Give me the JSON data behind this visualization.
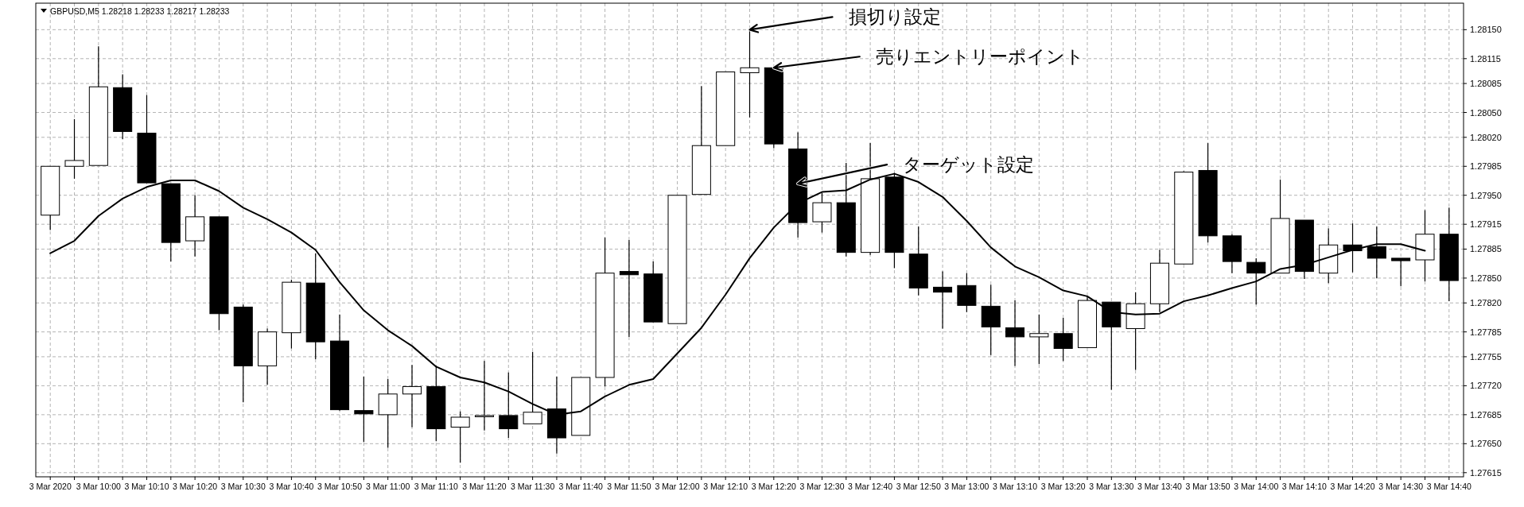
{
  "chart_data": {
    "type": "candlestick",
    "title": "GBPUSD,M5 1.28218 1.28233 1.28217 1.28233",
    "color": "#000000",
    "x": [
      "2020-03-03T09:50",
      "2020-03-03T09:55",
      "2020-03-03T10:00",
      "2020-03-03T10:05",
      "2020-03-03T10:10",
      "2020-03-03T10:15",
      "2020-03-03T10:20",
      "2020-03-03T10:25",
      "2020-03-03T10:30",
      "2020-03-03T10:35",
      "2020-03-03T10:40",
      "2020-03-03T10:45",
      "2020-03-03T10:50",
      "2020-03-03T10:55",
      "2020-03-03T11:00",
      "2020-03-03T11:05",
      "2020-03-03T11:10",
      "2020-03-03T11:15",
      "2020-03-03T11:20",
      "2020-03-03T11:25",
      "2020-03-03T11:30",
      "2020-03-03T11:35",
      "2020-03-03T11:40",
      "2020-03-03T11:45",
      "2020-03-03T11:50",
      "2020-03-03T11:55",
      "2020-03-03T12:00",
      "2020-03-03T12:05",
      "2020-03-03T12:10",
      "2020-03-03T12:15",
      "2020-03-03T12:20",
      "2020-03-03T12:25",
      "2020-03-03T12:30",
      "2020-03-03T12:35",
      "2020-03-03T12:40",
      "2020-03-03T12:45",
      "2020-03-03T12:50",
      "2020-03-03T12:55",
      "2020-03-03T13:00",
      "2020-03-03T13:05",
      "2020-03-03T13:10",
      "2020-03-03T13:15",
      "2020-03-03T13:20",
      "2020-03-03T13:25",
      "2020-03-03T13:30",
      "2020-03-03T13:35",
      "2020-03-03T13:40",
      "2020-03-03T13:45",
      "2020-03-03T13:50",
      "2020-03-03T13:55",
      "2020-03-03T14:00",
      "2020-03-03T14:05",
      "2020-03-03T14:10",
      "2020-03-03T14:15",
      "2020-03-03T14:20",
      "2020-03-03T14:25",
      "2020-03-03T14:30",
      "2020-03-03T14:35",
      "2020-03-03T14:40"
    ],
    "ohlc": [
      [
        1.27926,
        1.27985,
        1.27908,
        1.27985
      ],
      [
        1.27985,
        1.28042,
        1.2797,
        1.27992
      ],
      [
        1.27986,
        1.2813,
        1.27986,
        1.28081
      ],
      [
        1.2808,
        1.28096,
        1.28018,
        1.28027
      ],
      [
        1.28025,
        1.28071,
        1.27965,
        1.27965
      ],
      [
        1.27964,
        1.27964,
        1.2787,
        1.27893
      ],
      [
        1.27895,
        1.2795,
        1.27876,
        1.27924
      ],
      [
        1.27924,
        1.27924,
        1.27787,
        1.27807
      ],
      [
        1.27815,
        1.27818,
        1.277,
        1.27744
      ],
      [
        1.27744,
        1.27789,
        1.27721,
        1.27785
      ],
      [
        1.27784,
        1.27848,
        1.27765,
        1.27845
      ],
      [
        1.27844,
        1.2788,
        1.27752,
        1.27773
      ],
      [
        1.27774,
        1.27806,
        1.2769,
        1.27691
      ],
      [
        1.2769,
        1.27731,
        1.27652,
        1.27686
      ],
      [
        1.27685,
        1.27728,
        1.27645,
        1.2771
      ],
      [
        1.2771,
        1.27745,
        1.2767,
        1.27719
      ],
      [
        1.27719,
        1.27744,
        1.27653,
        1.27668
      ],
      [
        1.2767,
        1.27689,
        1.27627,
        1.27682
      ],
      [
        1.27684,
        1.2775,
        1.27666,
        1.27684
      ],
      [
        1.27684,
        1.27736,
        1.27657,
        1.27668
      ],
      [
        1.27674,
        1.27761,
        1.27674,
        1.27688
      ],
      [
        1.27692,
        1.27731,
        1.27638,
        1.27657
      ],
      [
        1.2766,
        1.2773,
        1.2766,
        1.2773
      ],
      [
        1.2773,
        1.27899,
        1.27719,
        1.27856
      ],
      [
        1.27858,
        1.27896,
        1.27779,
        1.27854
      ],
      [
        1.27855,
        1.2787,
        1.27797,
        1.27797
      ],
      [
        1.27795,
        1.2795,
        1.27795,
        1.2795
      ],
      [
        1.27951,
        1.28082,
        1.27951,
        1.2801
      ],
      [
        1.2801,
        1.28099,
        1.2801,
        1.28099
      ],
      [
        1.28098,
        1.2815,
        1.28044,
        1.28104
      ],
      [
        1.28104,
        1.28104,
        1.28007,
        1.28012
      ],
      [
        1.28006,
        1.28026,
        1.27899,
        1.27917
      ],
      [
        1.27918,
        1.27953,
        1.27905,
        1.27941
      ],
      [
        1.27941,
        1.27989,
        1.27876,
        1.27881
      ],
      [
        1.27881,
        1.28013,
        1.27878,
        1.2797
      ],
      [
        1.27972,
        1.27977,
        1.27862,
        1.27881
      ],
      [
        1.27879,
        1.27912,
        1.27829,
        1.27838
      ],
      [
        1.27839,
        1.27858,
        1.27789,
        1.27833
      ],
      [
        1.27841,
        1.27856,
        1.27809,
        1.27817
      ],
      [
        1.27816,
        1.27842,
        1.27757,
        1.27791
      ],
      [
        1.2779,
        1.27823,
        1.27744,
        1.27779
      ],
      [
        1.27779,
        1.27806,
        1.27746,
        1.27783
      ],
      [
        1.27783,
        1.27802,
        1.2775,
        1.27765
      ],
      [
        1.27766,
        1.27828,
        1.27766,
        1.27823
      ],
      [
        1.27821,
        1.27821,
        1.27715,
        1.27791
      ],
      [
        1.27789,
        1.27833,
        1.27739,
        1.27819
      ],
      [
        1.27819,
        1.27884,
        1.27809,
        1.27868
      ],
      [
        1.27867,
        1.27979,
        1.27867,
        1.27978
      ],
      [
        1.2798,
        1.28013,
        1.27893,
        1.27901
      ],
      [
        1.27901,
        1.27903,
        1.27856,
        1.2787
      ],
      [
        1.27869,
        1.27874,
        1.27818,
        1.27856
      ],
      [
        1.27856,
        1.27969,
        1.27856,
        1.27922
      ],
      [
        1.2792,
        1.2792,
        1.27849,
        1.27858
      ],
      [
        1.27856,
        1.2791,
        1.27844,
        1.2789
      ],
      [
        1.2789,
        1.27916,
        1.27857,
        1.27883
      ],
      [
        1.27888,
        1.27912,
        1.2785,
        1.27874
      ],
      [
        1.27874,
        1.27874,
        1.2784,
        1.27871
      ],
      [
        1.27872,
        1.27932,
        1.27846,
        1.27903
      ],
      [
        1.27903,
        1.27935,
        1.27822,
        1.27847
      ]
    ],
    "series": [
      {
        "type": "line",
        "color": "#000000",
        "values": [
          1.2788,
          1.27895,
          1.27925,
          1.27946,
          1.2796,
          1.27968,
          1.27968,
          1.27955,
          1.27935,
          1.27921,
          1.27905,
          1.27884,
          1.27845,
          1.27811,
          1.27787,
          1.27768,
          1.27743,
          1.2773,
          1.27724,
          1.27713,
          1.27698,
          1.27685,
          1.27689,
          1.27707,
          1.27721,
          1.27728,
          1.27759,
          1.2779,
          1.2783,
          1.27874,
          1.27911,
          1.2794,
          1.27954,
          1.27956,
          1.27969,
          1.27976,
          1.27966,
          1.27948,
          1.27919,
          1.27887,
          1.27864,
          1.27851,
          1.27835,
          1.27828,
          1.27809,
          1.27806,
          1.27807,
          1.27822,
          1.27829,
          1.27838,
          1.27846,
          1.27861,
          1.27866,
          1.27875,
          1.27884,
          1.27891,
          1.27891,
          1.27883,
          null
        ]
      }
    ],
    "xlim": [
      "2020-03-03T09:47",
      "2020-03-03T14:43"
    ],
    "xticks": [
      {
        "value": "2020-03-03T09:50",
        "label": "3 Mar 2020"
      },
      {
        "value": "2020-03-03T09:55",
        "label": null
      },
      {
        "value": "2020-03-03T10:00",
        "label": "3 Mar 10:00"
      },
      {
        "value": "2020-03-03T10:05",
        "label": null
      },
      {
        "value": "2020-03-03T10:10",
        "label": "3 Mar 10:10"
      },
      {
        "value": "2020-03-03T10:15",
        "label": null
      },
      {
        "value": "2020-03-03T10:20",
        "label": "3 Mar 10:20"
      },
      {
        "value": "2020-03-03T10:25",
        "label": null
      },
      {
        "value": "2020-03-03T10:30",
        "label": "3 Mar 10:30"
      },
      {
        "value": "2020-03-03T10:35",
        "label": null
      },
      {
        "value": "2020-03-03T10:40",
        "label": "3 Mar 10:40"
      },
      {
        "value": "2020-03-03T10:45",
        "label": null
      },
      {
        "value": "2020-03-03T10:50",
        "label": "3 Mar 10:50"
      },
      {
        "value": "2020-03-03T10:55",
        "label": null
      },
      {
        "value": "2020-03-03T11:00",
        "label": "3 Mar 11:00"
      },
      {
        "value": "2020-03-03T11:05",
        "label": null
      },
      {
        "value": "2020-03-03T11:10",
        "label": "3 Mar 11:10"
      },
      {
        "value": "2020-03-03T11:15",
        "label": null
      },
      {
        "value": "2020-03-03T11:20",
        "label": "3 Mar 11:20"
      },
      {
        "value": "2020-03-03T11:25",
        "label": null
      },
      {
        "value": "2020-03-03T11:30",
        "label": "3 Mar 11:30"
      },
      {
        "value": "2020-03-03T11:35",
        "label": null
      },
      {
        "value": "2020-03-03T11:40",
        "label": "3 Mar 11:40"
      },
      {
        "value": "2020-03-03T11:45",
        "label": null
      },
      {
        "value": "2020-03-03T11:50",
        "label": "3 Mar 11:50"
      },
      {
        "value": "2020-03-03T11:55",
        "label": null
      },
      {
        "value": "2020-03-03T12:00",
        "label": "3 Mar 12:00"
      },
      {
        "value": "2020-03-03T12:05",
        "label": null
      },
      {
        "value": "2020-03-03T12:10",
        "label": "3 Mar 12:10"
      },
      {
        "value": "2020-03-03T12:15",
        "label": null
      },
      {
        "value": "2020-03-03T12:20",
        "label": "3 Mar 12:20"
      },
      {
        "value": "2020-03-03T12:25",
        "label": null
      },
      {
        "value": "2020-03-03T12:30",
        "label": "3 Mar 12:30"
      },
      {
        "value": "2020-03-03T12:35",
        "label": null
      },
      {
        "value": "2020-03-03T12:40",
        "label": "3 Mar 12:40"
      },
      {
        "value": "2020-03-03T12:45",
        "label": null
      },
      {
        "value": "2020-03-03T12:50",
        "label": "3 Mar 12:50"
      },
      {
        "value": "2020-03-03T12:55",
        "label": null
      },
      {
        "value": "2020-03-03T13:00",
        "label": "3 Mar 13:00"
      },
      {
        "value": "2020-03-03T13:05",
        "label": null
      },
      {
        "value": "2020-03-03T13:10",
        "label": "3 Mar 13:10"
      },
      {
        "value": "2020-03-03T13:15",
        "label": null
      },
      {
        "value": "2020-03-03T13:20",
        "label": "3 Mar 13:20"
      },
      {
        "value": "2020-03-03T13:25",
        "label": null
      },
      {
        "value": "2020-03-03T13:30",
        "label": "3 Mar 13:30"
      },
      {
        "value": "2020-03-03T13:35",
        "label": null
      },
      {
        "value": "2020-03-03T13:40",
        "label": "3 Mar 13:40"
      },
      {
        "value": "2020-03-03T13:45",
        "label": null
      },
      {
        "value": "2020-03-03T13:50",
        "label": "3 Mar 13:50"
      },
      {
        "value": "2020-03-03T13:55",
        "label": null
      },
      {
        "value": "2020-03-03T14:00",
        "label": "3 Mar 14:00"
      },
      {
        "value": "2020-03-03T14:05",
        "label": null
      },
      {
        "value": "2020-03-03T14:10",
        "label": "3 Mar 14:10"
      },
      {
        "value": "2020-03-03T14:15",
        "label": null
      },
      {
        "value": "2020-03-03T14:20",
        "label": "3 Mar 14:20"
      },
      {
        "value": "2020-03-03T14:25",
        "label": null
      },
      {
        "value": "2020-03-03T14:30",
        "label": "3 Mar 14:30"
      },
      {
        "value": "2020-03-03T14:35",
        "label": null
      },
      {
        "value": "2020-03-03T14:40",
        "label": "3 Mar 14:40"
      }
    ],
    "ylim": [
      1.2761,
      1.28182
    ],
    "yticks": [
      {
        "value": 1.2815,
        "label": "1.28150"
      },
      {
        "value": 1.28115,
        "label": "1.28115"
      },
      {
        "value": 1.28085,
        "label": "1.28085"
      },
      {
        "value": 1.2805,
        "label": "1.28050"
      },
      {
        "value": 1.2802,
        "label": "1.28020"
      },
      {
        "value": 1.27985,
        "label": "1.27985"
      },
      {
        "value": 1.2795,
        "label": "1.27950"
      },
      {
        "value": 1.27915,
        "label": "1.27915"
      },
      {
        "value": 1.27885,
        "label": "1.27885"
      },
      {
        "value": 1.2785,
        "label": "1.27850"
      },
      {
        "value": 1.2782,
        "label": "1.27820"
      },
      {
        "value": 1.27785,
        "label": "1.27785"
      },
      {
        "value": 1.27755,
        "label": "1.27755"
      },
      {
        "value": 1.2772,
        "label": "1.27720"
      },
      {
        "value": 1.27685,
        "label": "1.27685"
      },
      {
        "value": 1.2765,
        "label": "1.27650"
      },
      {
        "value": 1.27615,
        "label": "1.27615"
      }
    ],
    "grid": true,
    "annotations": [
      {
        "text": "損切り設定",
        "x": "2020-03-03T12:15",
        "y": 1.2815
      },
      {
        "text": "売りエントリーポイント",
        "x": "2020-03-03T12:20",
        "y": 1.28104
      },
      {
        "text": "ターゲット設定",
        "x": "2020-03-03T12:25",
        "y": 1.27964
      }
    ]
  }
}
